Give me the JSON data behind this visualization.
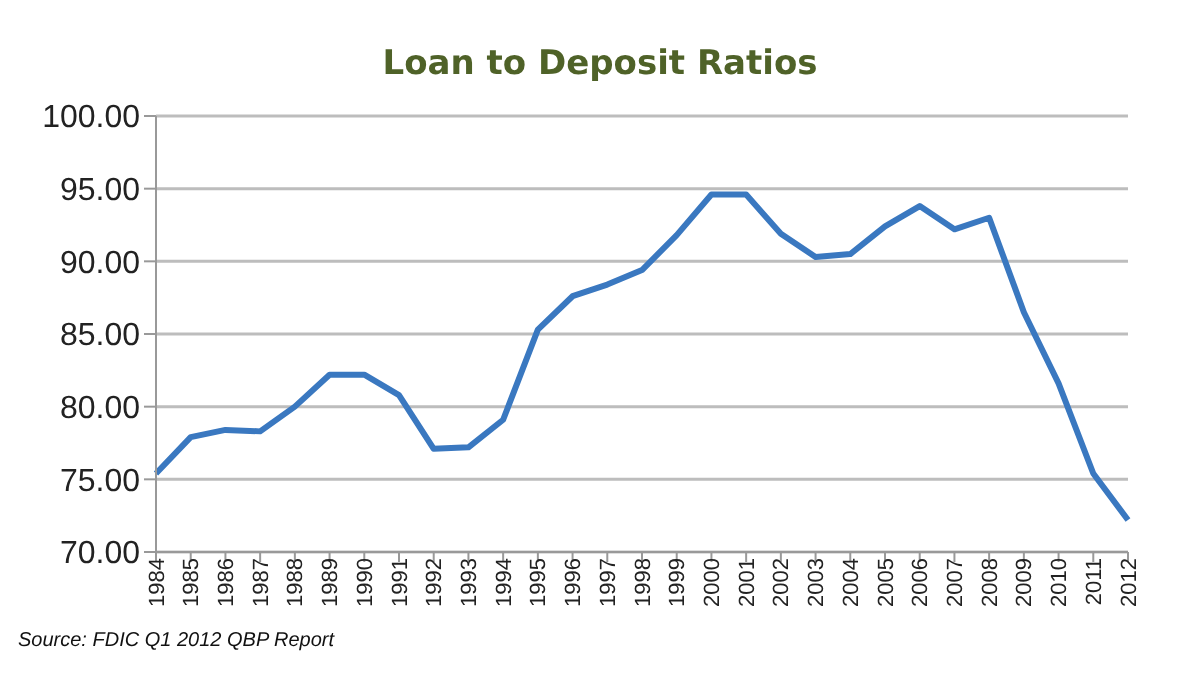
{
  "chart_data": {
    "type": "line",
    "title": "Loan to Deposit Ratios",
    "annotations": [
      "Source: FDIC Q1 2012 QBP Report"
    ],
    "categories": [
      "1984",
      "1985",
      "1986",
      "1987",
      "1988",
      "1989",
      "1990",
      "1991",
      "1992",
      "1993",
      "1994",
      "1995",
      "1996",
      "1997",
      "1998",
      "1999",
      "2000",
      "2001",
      "2002",
      "2003",
      "2004",
      "2005",
      "2006",
      "2007",
      "2008",
      "2009",
      "2010",
      "2011",
      "2012"
    ],
    "series": [
      {
        "color": "#3a78c0",
        "values": [
          75.4,
          77.9,
          78.4,
          78.3,
          80.0,
          82.2,
          82.2,
          80.8,
          77.1,
          77.2,
          79.1,
          85.3,
          87.6,
          88.4,
          89.4,
          91.8,
          94.6,
          94.6,
          91.9,
          90.3,
          90.5,
          92.4,
          93.8,
          92.2,
          93.0,
          86.5,
          81.6,
          75.4,
          72.2
        ]
      }
    ],
    "ylim": [
      70,
      100
    ],
    "yticks": [
      {
        "value": 70,
        "label": "70.00"
      },
      {
        "value": 75,
        "label": "75.00"
      },
      {
        "value": 80,
        "label": "80.00"
      },
      {
        "value": 85,
        "label": "85.00"
      },
      {
        "value": 90,
        "label": "90.00"
      },
      {
        "value": 95,
        "label": "95.00"
      },
      {
        "value": 100,
        "label": "100.00"
      }
    ],
    "grid": "y",
    "legend": false,
    "marker": "none",
    "line_style": "solid"
  }
}
